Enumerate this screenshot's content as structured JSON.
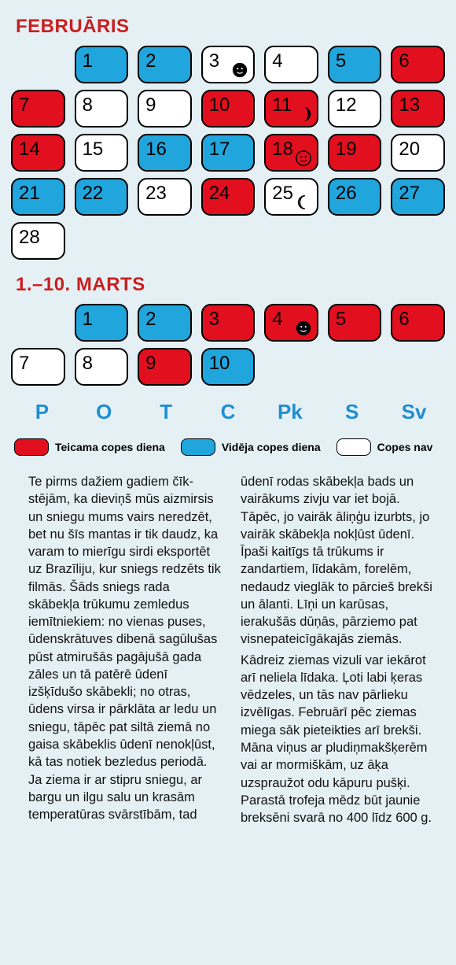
{
  "colors": {
    "bg": "#e5f0f5",
    "red": "#e20f1e",
    "blue": "#20a5dd",
    "white": "#ffffff",
    "title": "#c91f1f",
    "weekday": "#1f8fd1"
  },
  "months": [
    {
      "title": "FEBRUĀRIS",
      "leading_empty": 1,
      "days": [
        {
          "n": 1,
          "t": "blue"
        },
        {
          "n": 2,
          "t": "blue"
        },
        {
          "n": 3,
          "t": "white",
          "moon": "new"
        },
        {
          "n": 4,
          "t": "white"
        },
        {
          "n": 5,
          "t": "blue"
        },
        {
          "n": 6,
          "t": "red"
        },
        {
          "n": 7,
          "t": "red"
        },
        {
          "n": 8,
          "t": "white"
        },
        {
          "n": 9,
          "t": "white"
        },
        {
          "n": 10,
          "t": "red"
        },
        {
          "n": 11,
          "t": "red",
          "moon": "firstq"
        },
        {
          "n": 12,
          "t": "white"
        },
        {
          "n": 13,
          "t": "red"
        },
        {
          "n": 14,
          "t": "red"
        },
        {
          "n": 15,
          "t": "white"
        },
        {
          "n": 16,
          "t": "blue"
        },
        {
          "n": 17,
          "t": "blue"
        },
        {
          "n": 18,
          "t": "red",
          "moon": "full"
        },
        {
          "n": 19,
          "t": "red"
        },
        {
          "n": 20,
          "t": "white"
        },
        {
          "n": 21,
          "t": "blue"
        },
        {
          "n": 22,
          "t": "blue"
        },
        {
          "n": 23,
          "t": "white"
        },
        {
          "n": 24,
          "t": "red"
        },
        {
          "n": 25,
          "t": "white",
          "moon": "lastq"
        },
        {
          "n": 26,
          "t": "blue"
        },
        {
          "n": 27,
          "t": "blue"
        },
        {
          "n": 28,
          "t": "white"
        }
      ]
    },
    {
      "title": "1.–10. MARTS",
      "leading_empty": 1,
      "days": [
        {
          "n": 1,
          "t": "blue"
        },
        {
          "n": 2,
          "t": "blue"
        },
        {
          "n": 3,
          "t": "red"
        },
        {
          "n": 4,
          "t": "red",
          "moon": "new"
        },
        {
          "n": 5,
          "t": "red"
        },
        {
          "n": 6,
          "t": "red"
        },
        {
          "n": 7,
          "t": "white"
        },
        {
          "n": 8,
          "t": "white"
        },
        {
          "n": 9,
          "t": "red"
        },
        {
          "n": 10,
          "t": "blue"
        }
      ]
    }
  ],
  "weekdays": [
    "P",
    "O",
    "T",
    "C",
    "Pk",
    "S",
    "Sv"
  ],
  "legend": [
    {
      "t": "red",
      "label": "Teicama copes diena"
    },
    {
      "t": "blue",
      "label": "Vidēja copes diena"
    },
    {
      "t": "white",
      "label": "Copes nav"
    }
  ],
  "article": [
    "Te pirms dažiem gadiem čīk­stējām, ka dieviņš mūs aiz­mirsis un sniegu mums vairs neredzēt, bet nu šīs mantas ir tik daudz, ka varam to mierīgu sirdi eksportēt uz Brazīliju, kur sniegs redzēts tik filmās. Šāds sniegs rada skābekļa trūkumu zemledus iemītniekiem: no vienas puses, ūdenskrātuves dibe­nā sagūlušas pūst atmirušās pagājušā gada zāles un tā patērē ūdenī izšķīdušo skā­bekli; no otras, ūdens virsa ir pārklāta ar ledu un sniegu, tāpēc pat siltā ziemā no gaisa skābeklis ūdenī neno­kļūst, kā tas notiek bezledus periodā. Ja ziema ir ar stipru sniegu, ar bargu un ilgu salu un krasām temperatūras svārstībām, tad ūdenī rodas skābekļa bads un vairākums zivju var iet bojā. Tāpēc, jo vairāk āliņģu izurbts, jo vai­rāk skābekļa nokļūst ūdenī. Īpaši kaitīgs tā trūkums ir zandartiem, līdakām, fore­lēm, nedaudz vieglāk to pārcieš brekši un ālanti. Līņi un karūsas, ierakušās dūņās, pārziemo pat visnepateicīgā­kajās ziemās.",
    "Kādreiz ziemas vizuli var iekārot arī neliela līdaka. Ļoti labi ķeras vēdzeles, un tās nav pārlieku izvēlīgas. Februārī pēc ziemas miega sāk pieteikties arī brekši. Māna viņus ar pludiņmak­šķerēm vai ar mormiškām, uz āķa uzspraužot odu kāpuru pušķi. Parastā trofeja mēdz būt jaunie breksēni svarā no 400 līdz 600 g."
  ]
}
